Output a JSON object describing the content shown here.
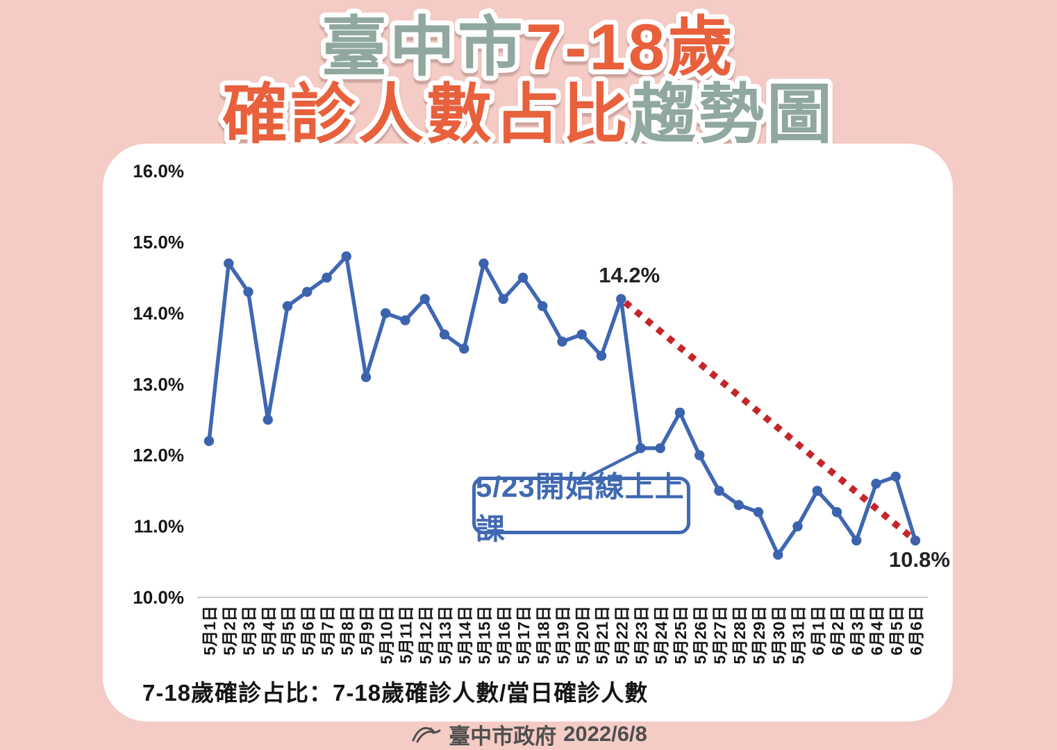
{
  "title": {
    "line1_prefix": "臺中市",
    "line1_suffix": "7-18歲",
    "line2_prefix": "確診人數占比",
    "line2_suffix": "趨勢圖"
  },
  "colors": {
    "background_pink": "#f5cbc5",
    "sage": "#90A89E",
    "orange": "#E8603C",
    "line_blue": "#3F68B3",
    "marker_blue": "#3B63AE",
    "trend_red": "#C4262B",
    "callout_blue": "#4069B2",
    "axis_text": "#161616",
    "footer_text": "#4e4e4e"
  },
  "chart_data": {
    "type": "line",
    "title": "臺中市7-18歲確診人數占比趨勢圖",
    "categories": [
      "5月1日",
      "5月2日",
      "5月3日",
      "5月4日",
      "5月5日",
      "5月6日",
      "5月7日",
      "5月8日",
      "5月9日",
      "5月10日",
      "5月11日",
      "5月12日",
      "5月13日",
      "5月14日",
      "5月15日",
      "5月16日",
      "5月17日",
      "5月18日",
      "5月19日",
      "5月20日",
      "5月21日",
      "5月22日",
      "5月23日",
      "5月24日",
      "5月25日",
      "5月26日",
      "5月27日",
      "5月28日",
      "5月29日",
      "5月30日",
      "5月31日",
      "6月1日",
      "6月2日",
      "6月3日",
      "6月4日",
      "6月5日",
      "6月6日"
    ],
    "values": [
      12.2,
      14.7,
      14.3,
      12.5,
      14.1,
      14.3,
      14.5,
      14.8,
      13.1,
      14.0,
      13.9,
      14.2,
      13.7,
      13.5,
      14.7,
      14.2,
      14.5,
      14.1,
      13.6,
      13.7,
      13.4,
      14.2,
      12.1,
      12.1,
      12.6,
      12.0,
      11.5,
      11.3,
      11.2,
      10.6,
      11.0,
      11.5,
      11.2,
      10.8,
      11.6,
      11.7,
      10.8
    ],
    "ylim": [
      10,
      16
    ],
    "ytick_labels": [
      "16.0%",
      "15.0%",
      "14.0%",
      "13.0%",
      "12.0%",
      "11.0%",
      "10.0%"
    ],
    "ytick_values": [
      16,
      15,
      14,
      13,
      12,
      11,
      10
    ],
    "grid": false,
    "legend": false,
    "annotations": [
      {
        "text": "14.2%",
        "index": 21,
        "position": "above"
      },
      {
        "text": "10.8%",
        "index": 36,
        "position": "below-right"
      }
    ],
    "trendline": {
      "style": "dotted",
      "from_index": 21,
      "from_value": 14.2,
      "to_index": 36,
      "to_value": 10.8
    },
    "callout": {
      "text": "5/23開始線上上課",
      "points_to_category": "5月23日",
      "points_to_index": 22
    }
  },
  "footnote": "7-18歲確診占比：7-18歲確診人數/當日確診人數",
  "footer": {
    "org": "臺中市政府",
    "date": "2022/6/8"
  }
}
